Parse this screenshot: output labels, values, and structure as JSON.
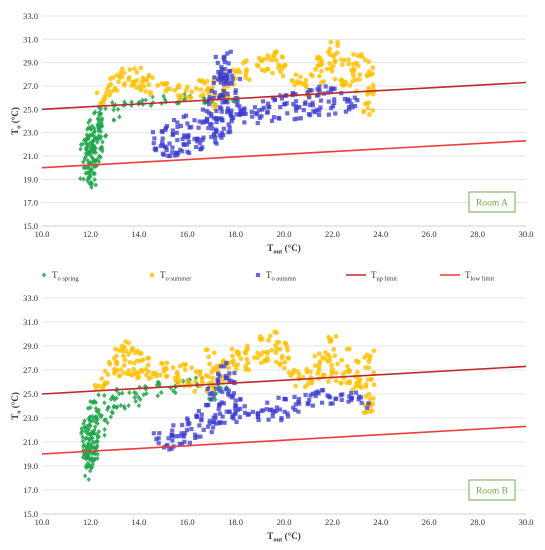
{
  "legend": {
    "spring": {
      "main": "T",
      "sub": "o spring"
    },
    "summer": {
      "main": "T",
      "sub": "o summer"
    },
    "autumn": {
      "main": "T",
      "sub": "o autumn"
    },
    "up": {
      "main": "T",
      "sub": "up limit"
    },
    "low": {
      "main": "T",
      "sub": "low limit"
    }
  },
  "colors": {
    "spring": "#1fa64a",
    "summer": "#ffc000",
    "autumn": "#3a3ad0",
    "up": "#c0282e",
    "low": "#ee3c3c",
    "room_label": "#70ad47",
    "grid": "#e6e6e6"
  },
  "chart_data": [
    {
      "type": "scatter",
      "xlabel": {
        "main": "T",
        "sub": "out",
        "unit": " (°C)"
      },
      "ylabel": {
        "main": "T",
        "sub": "o",
        "unit": " (°C)"
      },
      "xlim": [
        10.0,
        30.0
      ],
      "ylim": [
        15.0,
        33.0
      ],
      "xticks": [
        "10.0",
        "12.0",
        "14.0",
        "16.0",
        "18.0",
        "20.0",
        "22.0",
        "24.0",
        "26.0",
        "28.0",
        "30.0"
      ],
      "yticks": [
        "15.0",
        "17.0",
        "19.0",
        "21.0",
        "23.0",
        "25.0",
        "27.0",
        "29.0",
        "31.0",
        "33.0"
      ],
      "grid": "horizontal",
      "annotation": "Room A",
      "lines": {
        "up": {
          "x": [
            10,
            30
          ],
          "y": [
            25.0,
            27.3
          ]
        },
        "low": {
          "x": [
            10,
            30
          ],
          "y": [
            20.0,
            22.3
          ]
        }
      },
      "series": [
        {
          "key": "spring",
          "marker": "diamond",
          "bands": [
            [
              11.8,
              19.0,
              22.5
            ],
            [
              11.9,
              17.8,
              23.2
            ],
            [
              12.0,
              18.5,
              23.8
            ],
            [
              12.1,
              19.5,
              24.5
            ],
            [
              12.2,
              20.5,
              24.8
            ],
            [
              12.3,
              21.0,
              25.2
            ],
            [
              12.5,
              22.5,
              25.5
            ],
            [
              13.0,
              24.0,
              25.6
            ],
            [
              13.5,
              24.8,
              25.8
            ],
            [
              14.0,
              25.0,
              26.0
            ],
            [
              14.5,
              25.3,
              26.2
            ],
            [
              15.0,
              25.5,
              26.3
            ],
            [
              15.5,
              25.5,
              26.2
            ],
            [
              16.0,
              25.8,
              26.5
            ],
            [
              16.5,
              25.5,
              26.4
            ],
            [
              17.0,
              25.3,
              26.0
            ],
            [
              17.5,
              25.5,
              26.3
            ],
            [
              18.0,
              25.6,
              26.0
            ]
          ]
        },
        {
          "key": "summer",
          "marker": "circle",
          "bands": [
            [
              12.4,
              25.5,
              26.8
            ],
            [
              12.8,
              26.0,
              27.8
            ],
            [
              13.2,
              26.5,
              28.5
            ],
            [
              13.6,
              26.8,
              28.9
            ],
            [
              14.0,
              26.5,
              28.6
            ],
            [
              14.5,
              26.2,
              28.0
            ],
            [
              15.0,
              26.0,
              27.5
            ],
            [
              15.5,
              25.8,
              27.2
            ],
            [
              16.0,
              25.8,
              27.0
            ],
            [
              16.5,
              26.0,
              27.5
            ],
            [
              17.0,
              25.0,
              27.8
            ],
            [
              17.5,
              25.5,
              28.2
            ],
            [
              18.0,
              27.0,
              28.7
            ],
            [
              18.5,
              27.5,
              29.2
            ],
            [
              19.0,
              28.0,
              29.6
            ],
            [
              19.5,
              27.8,
              30.2
            ],
            [
              20.0,
              27.5,
              29.5
            ],
            [
              20.5,
              27.0,
              28.5
            ],
            [
              21.0,
              26.0,
              28.0
            ],
            [
              21.5,
              26.5,
              29.5
            ],
            [
              22.0,
              27.5,
              30.8
            ],
            [
              22.5,
              27.0,
              29.5
            ],
            [
              23.0,
              26.5,
              29.8
            ],
            [
              23.5,
              24.5,
              29.5
            ]
          ]
        },
        {
          "key": "autumn",
          "marker": "square",
          "bands": [
            [
              14.8,
              21.5,
              23.5
            ],
            [
              15.2,
              20.8,
              23.8
            ],
            [
              15.6,
              21.0,
              24.2
            ],
            [
              16.0,
              21.2,
              24.5
            ],
            [
              16.5,
              21.5,
              25.0
            ],
            [
              17.0,
              22.0,
              27.0
            ],
            [
              17.3,
              22.5,
              29.5
            ],
            [
              17.6,
              23.0,
              30.5
            ],
            [
              18.0,
              23.5,
              28.0
            ],
            [
              18.5,
              23.8,
              25.5
            ],
            [
              19.0,
              23.8,
              25.8
            ],
            [
              19.5,
              24.0,
              26.0
            ],
            [
              20.0,
              24.0,
              26.2
            ],
            [
              20.5,
              24.0,
              26.5
            ],
            [
              21.0,
              24.2,
              26.8
            ],
            [
              21.5,
              24.3,
              27.0
            ],
            [
              22.0,
              24.5,
              26.8
            ],
            [
              22.5,
              24.8,
              26.5
            ],
            [
              23.0,
              25.0,
              26.0
            ]
          ]
        }
      ]
    },
    {
      "type": "scatter",
      "xlabel": {
        "main": "T",
        "sub": "out",
        "unit": " (°C)"
      },
      "ylabel": {
        "main": "T",
        "sub": "o",
        "unit": " (°C)"
      },
      "xlim": [
        10.0,
        30.0
      ],
      "ylim": [
        15.0,
        33.0
      ],
      "xticks": [
        "10.0",
        "12.0",
        "14.0",
        "16.0",
        "18.0",
        "20.0",
        "22.0",
        "24.0",
        "26.0",
        "28.0",
        "30.0"
      ],
      "yticks": [
        "15.0",
        "17.0",
        "19.0",
        "21.0",
        "23.0",
        "25.0",
        "27.0",
        "29.0",
        "31.0",
        "33.0"
      ],
      "grid": "horizontal",
      "annotation": "Room B",
      "lines": {
        "up": {
          "x": [
            10,
            30
          ],
          "y": [
            25.0,
            27.3
          ]
        },
        "low": {
          "x": [
            10,
            30
          ],
          "y": [
            20.0,
            22.3
          ]
        }
      },
      "series": [
        {
          "key": "spring",
          "marker": "diamond",
          "bands": [
            [
              11.8,
              19.0,
              22.8
            ],
            [
              11.9,
              17.4,
              23.0
            ],
            [
              12.0,
              18.5,
              23.5
            ],
            [
              12.1,
              19.5,
              24.2
            ],
            [
              12.2,
              20.5,
              24.5
            ],
            [
              12.4,
              21.5,
              25.0
            ],
            [
              12.8,
              22.5,
              25.3
            ],
            [
              13.2,
              23.5,
              25.5
            ],
            [
              13.8,
              24.0,
              25.6
            ],
            [
              14.2,
              24.5,
              25.8
            ],
            [
              14.8,
              24.8,
              26.0
            ],
            [
              15.5,
              25.0,
              26.2
            ],
            [
              16.0,
              25.3,
              26.2
            ],
            [
              16.5,
              25.5,
              26.4
            ],
            [
              17.0,
              24.5,
              25.8
            ],
            [
              17.5,
              25.2,
              25.8
            ]
          ]
        },
        {
          "key": "summer",
          "marker": "circle",
          "bands": [
            [
              12.4,
              25.0,
              26.5
            ],
            [
              12.8,
              25.8,
              28.0
            ],
            [
              13.2,
              26.2,
              29.3
            ],
            [
              13.6,
              26.2,
              29.4
            ],
            [
              14.0,
              26.0,
              29.0
            ],
            [
              14.5,
              25.8,
              28.2
            ],
            [
              15.0,
              25.8,
              27.8
            ],
            [
              15.5,
              25.5,
              27.5
            ],
            [
              16.0,
              25.5,
              27.5
            ],
            [
              16.5,
              25.0,
              27.0
            ],
            [
              17.0,
              25.0,
              28.8
            ],
            [
              17.5,
              26.0,
              28.5
            ],
            [
              18.0,
              26.5,
              28.8
            ],
            [
              18.5,
              27.0,
              29.0
            ],
            [
              19.0,
              27.5,
              29.8
            ],
            [
              19.5,
              27.5,
              30.3
            ],
            [
              20.0,
              26.5,
              29.5
            ],
            [
              20.5,
              25.5,
              27.0
            ],
            [
              21.0,
              25.5,
              27.5
            ],
            [
              21.5,
              25.8,
              28.8
            ],
            [
              22.0,
              26.0,
              30.0
            ],
            [
              22.5,
              25.8,
              28.8
            ],
            [
              23.0,
              25.2,
              28.0
            ],
            [
              23.5,
              23.0,
              28.7
            ]
          ]
        },
        {
          "key": "autumn",
          "marker": "square",
          "bands": [
            [
              14.8,
              20.8,
              21.8
            ],
            [
              15.2,
              20.3,
              22.2
            ],
            [
              15.6,
              20.5,
              22.5
            ],
            [
              16.0,
              20.8,
              23.0
            ],
            [
              16.5,
              21.3,
              23.8
            ],
            [
              17.0,
              21.8,
              25.5
            ],
            [
              17.4,
              22.5,
              27.7
            ],
            [
              17.8,
              22.8,
              26.8
            ],
            [
              18.0,
              22.5,
              24.8
            ],
            [
              18.5,
              23.0,
              24.0
            ],
            [
              19.0,
              22.8,
              24.2
            ],
            [
              19.5,
              22.5,
              24.5
            ],
            [
              20.0,
              22.8,
              24.8
            ],
            [
              20.5,
              23.5,
              25.0
            ],
            [
              21.0,
              24.0,
              25.3
            ],
            [
              21.5,
              24.2,
              25.5
            ],
            [
              22.0,
              23.8,
              25.2
            ],
            [
              22.5,
              24.0,
              25.0
            ],
            [
              23.0,
              24.0,
              25.2
            ],
            [
              23.3,
              23.8,
              24.8
            ]
          ]
        }
      ]
    }
  ]
}
